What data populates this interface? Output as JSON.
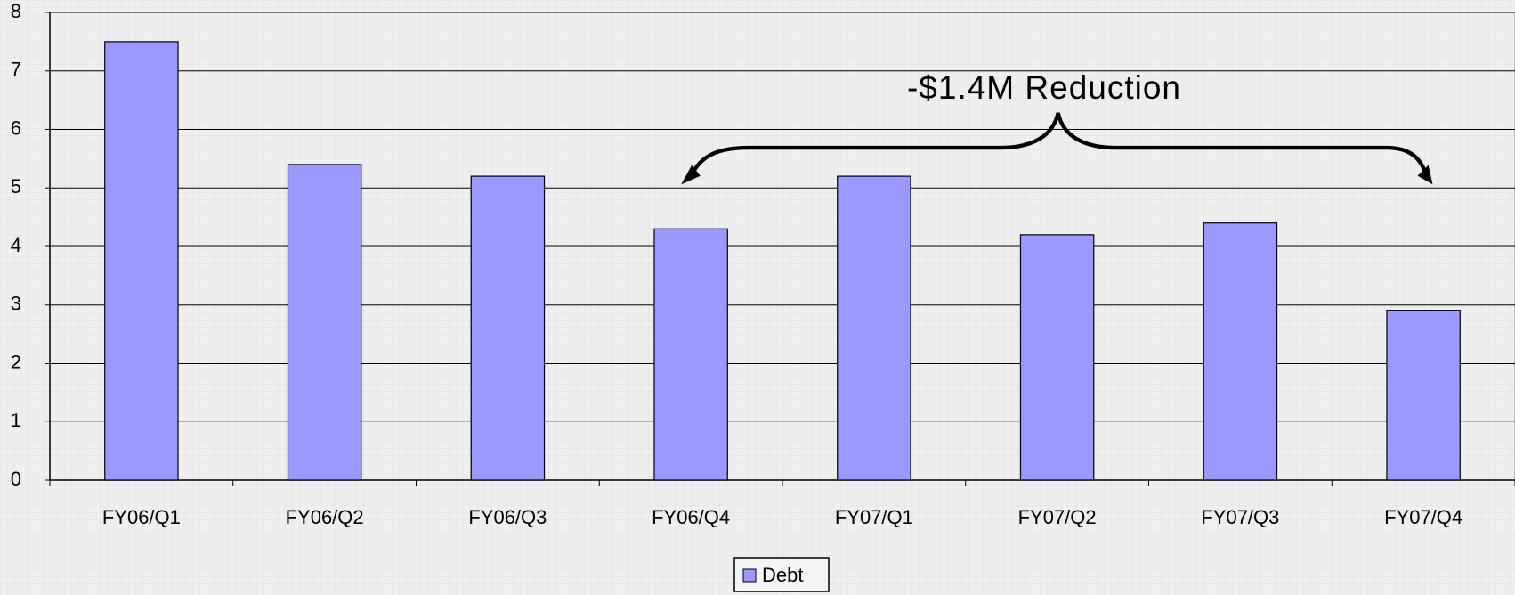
{
  "chart_data": {
    "type": "bar",
    "categories": [
      "FY06/Q1",
      "FY06/Q2",
      "FY06/Q3",
      "FY06/Q4",
      "FY07/Q1",
      "FY07/Q2",
      "FY07/Q3",
      "FY07/Q4"
    ],
    "series": [
      {
        "name": "Debt",
        "color": "#9999ff",
        "values": [
          7.5,
          5.4,
          5.2,
          4.3,
          5.2,
          4.2,
          4.4,
          2.9
        ]
      }
    ],
    "ylim": [
      0,
      8
    ],
    "yticks": [
      0,
      1,
      2,
      3,
      4,
      5,
      6,
      7,
      8
    ],
    "grid": true,
    "annotation": "-$1.4M Reduction",
    "legend": "bottom"
  }
}
